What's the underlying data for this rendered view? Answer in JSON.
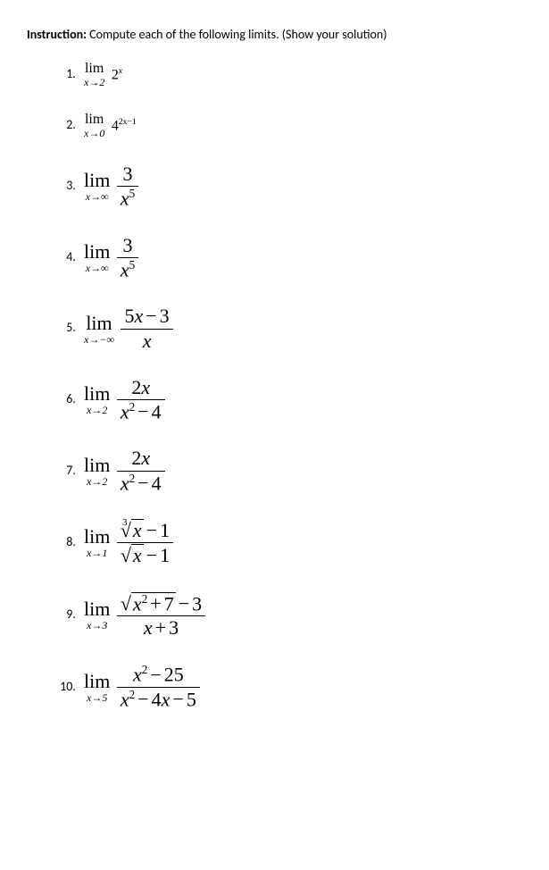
{
  "instruction": {
    "label": "Instruction:",
    "text": " Compute each of the following limits. (Show your solution)"
  },
  "problems": {
    "p1": {
      "lim": "lim",
      "sub": "x→2",
      "body": "2",
      "sup": "x"
    },
    "p2": {
      "lim": "lim",
      "sub": "x→0",
      "body": "4",
      "sup": "2x−1"
    },
    "p3": {
      "lim": "lim",
      "sub": "x→∞",
      "num": "3",
      "den_base": "x",
      "den_sup": "5"
    },
    "p4": {
      "lim": "lim",
      "sub": "x→∞",
      "num": "3",
      "den_base": "x",
      "den_sup": "5"
    },
    "p5": {
      "lim": "lim",
      "sub": "x→−∞",
      "num": "5x − 3",
      "den": "x"
    },
    "p6": {
      "lim": "lim",
      "sub": "x→2",
      "num": "2x",
      "den": "x² − 4"
    },
    "p7": {
      "lim": "lim",
      "sub": "x→2",
      "num": "2x",
      "den": "x² − 4"
    },
    "p8": {
      "lim": "lim",
      "sub": "x→1",
      "num_rad": "x",
      "num_rest": " − 1",
      "den_rad": "x",
      "den_rest": " − 1",
      "root3": "3"
    },
    "p9": {
      "lim": "lim",
      "sub": "x→3",
      "num_rad": "x² + 7",
      "num_rest": " − 3",
      "den": "x + 3"
    },
    "p10": {
      "lim": "lim",
      "sub": "x→5",
      "num": "x² − 25",
      "den": "x² − 4x − 5"
    }
  }
}
